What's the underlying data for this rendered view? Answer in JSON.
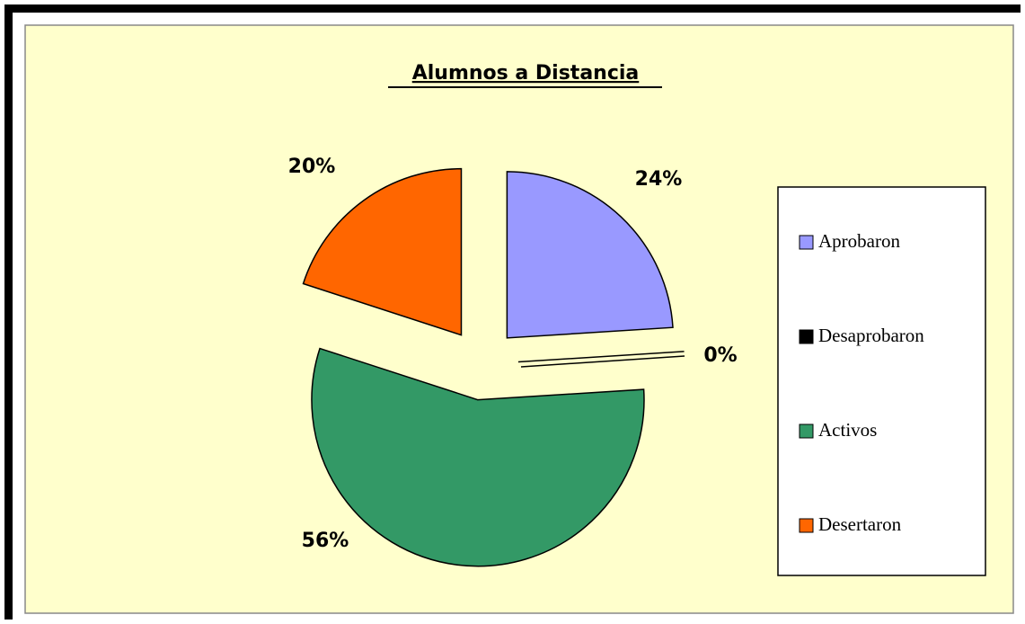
{
  "chart_data": {
    "type": "pie",
    "title": "Alumnos a Distancia",
    "categories": [
      "Aprobaron",
      "Desaprobaron",
      "Activos",
      "Desertaron"
    ],
    "values": [
      24,
      0,
      56,
      20
    ],
    "value_labels": [
      "24%",
      "0%",
      "56%",
      "20%"
    ],
    "colors": [
      "#9999ff",
      "#000000",
      "#339966",
      "#ff6600"
    ],
    "legend": "right"
  }
}
